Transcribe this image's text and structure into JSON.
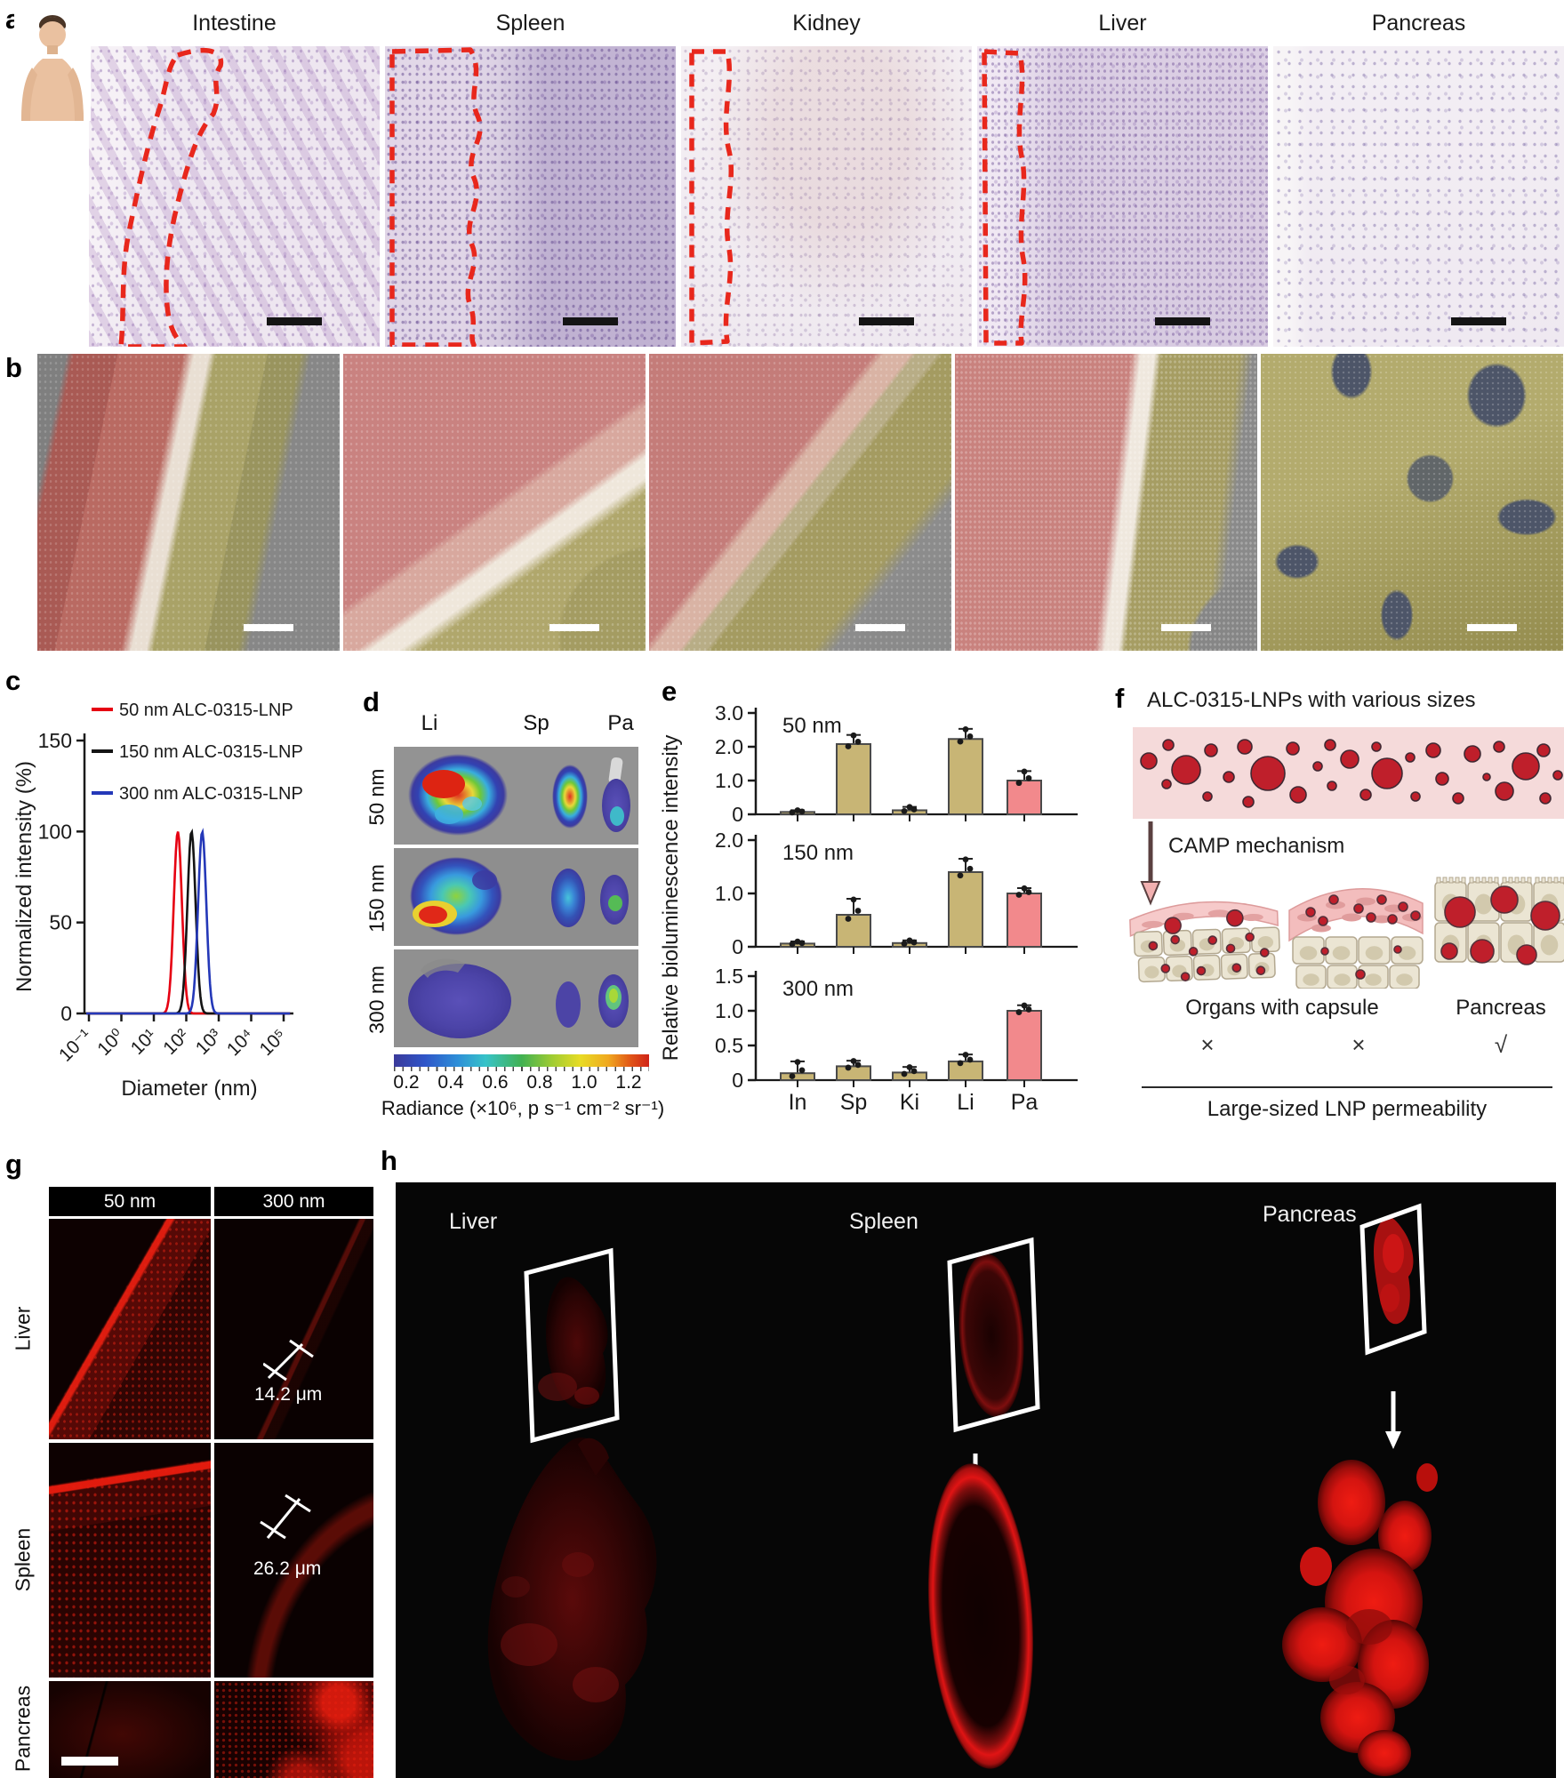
{
  "panel_labels": {
    "a": "a",
    "b": "b",
    "c": "c",
    "d": "d",
    "e": "e",
    "f": "f",
    "g": "g",
    "h": "h"
  },
  "panel_a": {
    "organ_headers": [
      "Intestine",
      "Spleen",
      "Kidney",
      "Liver",
      "Pancreas"
    ]
  },
  "panel_d": {
    "col_headers": [
      "Li",
      "Sp",
      "Pa"
    ],
    "row_headers": [
      "50 nm",
      "150 nm",
      "300 nm"
    ],
    "colorbar": {
      "ticks": [
        "0.2",
        "0.4",
        "0.6",
        "0.8",
        "1.0",
        "1.2"
      ],
      "label": "Radiance (×10⁶, p s⁻¹ cm⁻² sr⁻¹)"
    }
  },
  "panel_e": {
    "ylabel": "Relative bioluminescence intensity"
  },
  "panel_f": {
    "title": "ALC-0315-LNPs with various sizes",
    "arrow_label": "CAMP mechanism",
    "group1_label": "Organs with capsule",
    "group2_label": "Pancreas",
    "marks": [
      "×",
      "×",
      "√"
    ],
    "bottom_label": "Large-sized LNP permeability",
    "lnp_color": "#bf1f2b",
    "band_color": "#f5dada"
  },
  "panel_g": {
    "col_headers": [
      "50 nm",
      "300 nm"
    ],
    "row_headers": [
      "Liver",
      "Spleen",
      "Pancreas"
    ],
    "annotations": [
      "14.2 μm",
      "26.2 μm"
    ]
  },
  "panel_h": {
    "organ_labels": [
      "Liver",
      "Spleen",
      "Pancreas"
    ]
  },
  "chart_data": [
    {
      "id": "c-size-distribution",
      "type": "line",
      "title": "",
      "xlabel": "Diameter (nm)",
      "ylabel": "Normalized intensity (%)",
      "x_scale": "log",
      "xlim_log": [
        -1,
        5
      ],
      "x_tick_labels": [
        "10⁻¹",
        "10⁰",
        "10¹",
        "10²",
        "10³",
        "10⁴",
        "10⁵"
      ],
      "ylim": [
        0,
        150
      ],
      "y_ticks": [
        0,
        50,
        100,
        150
      ],
      "y_tick_labels": [
        "0",
        "50",
        "100",
        "150"
      ],
      "grid": false,
      "legend_position": "top-left",
      "series": [
        {
          "name": "50 nm ALC-0315-LNP",
          "color": "#e60012",
          "peak_nm": 55,
          "peak_height_pct": 100
        },
        {
          "name": "150 nm ALC-0315-LNP",
          "color": "#141414",
          "peak_nm": 145,
          "peak_height_pct": 100
        },
        {
          "name": "300 nm ALC-0315-LNP",
          "color": "#2438b8",
          "peak_nm": 310,
          "peak_height_pct": 100
        }
      ]
    },
    {
      "id": "e-50nm",
      "type": "bar",
      "title": "50 nm",
      "categories": [
        "In",
        "Sp",
        "Ki",
        "Li",
        "Pa"
      ],
      "values": [
        0.07,
        2.08,
        0.12,
        2.23,
        1.0
      ],
      "errors": [
        0.05,
        0.27,
        0.1,
        0.3,
        0.28
      ],
      "ylim": [
        0,
        3.0
      ],
      "y_ticks": [
        0,
        1.0,
        2.0,
        3.0
      ],
      "y_tick_labels": [
        "0",
        "1.0",
        "2.0",
        "3.0"
      ],
      "bar_colors": [
        "#c8b575",
        "#c8b575",
        "#c8b575",
        "#c8b575",
        "#f2898c"
      ]
    },
    {
      "id": "e-150nm",
      "type": "bar",
      "title": "150 nm",
      "categories": [
        "In",
        "Sp",
        "Ki",
        "Li",
        "Pa"
      ],
      "values": [
        0.06,
        0.6,
        0.07,
        1.4,
        1.0
      ],
      "errors": [
        0.04,
        0.3,
        0.05,
        0.25,
        0.1
      ],
      "ylim": [
        0,
        2.0
      ],
      "y_ticks": [
        0,
        1.0,
        2.0
      ],
      "y_tick_labels": [
        "0",
        "1.0",
        "2.0"
      ],
      "bar_colors": [
        "#c8b575",
        "#c8b575",
        "#c8b575",
        "#c8b575",
        "#f2898c"
      ]
    },
    {
      "id": "e-300nm",
      "type": "bar",
      "title": "300 nm",
      "categories": [
        "In",
        "Sp",
        "Ki",
        "Li",
        "Pa"
      ],
      "values": [
        0.1,
        0.2,
        0.11,
        0.27,
        1.0
      ],
      "errors": [
        0.17,
        0.08,
        0.08,
        0.1,
        0.08
      ],
      "ylim": [
        0,
        1.5
      ],
      "y_ticks": [
        0,
        0.5,
        1.0,
        1.5
      ],
      "y_tick_labels": [
        "0",
        "0.5",
        "1.0",
        "1.5"
      ],
      "bar_colors": [
        "#c8b575",
        "#c8b575",
        "#c8b575",
        "#c8b575",
        "#f2898c"
      ]
    }
  ]
}
